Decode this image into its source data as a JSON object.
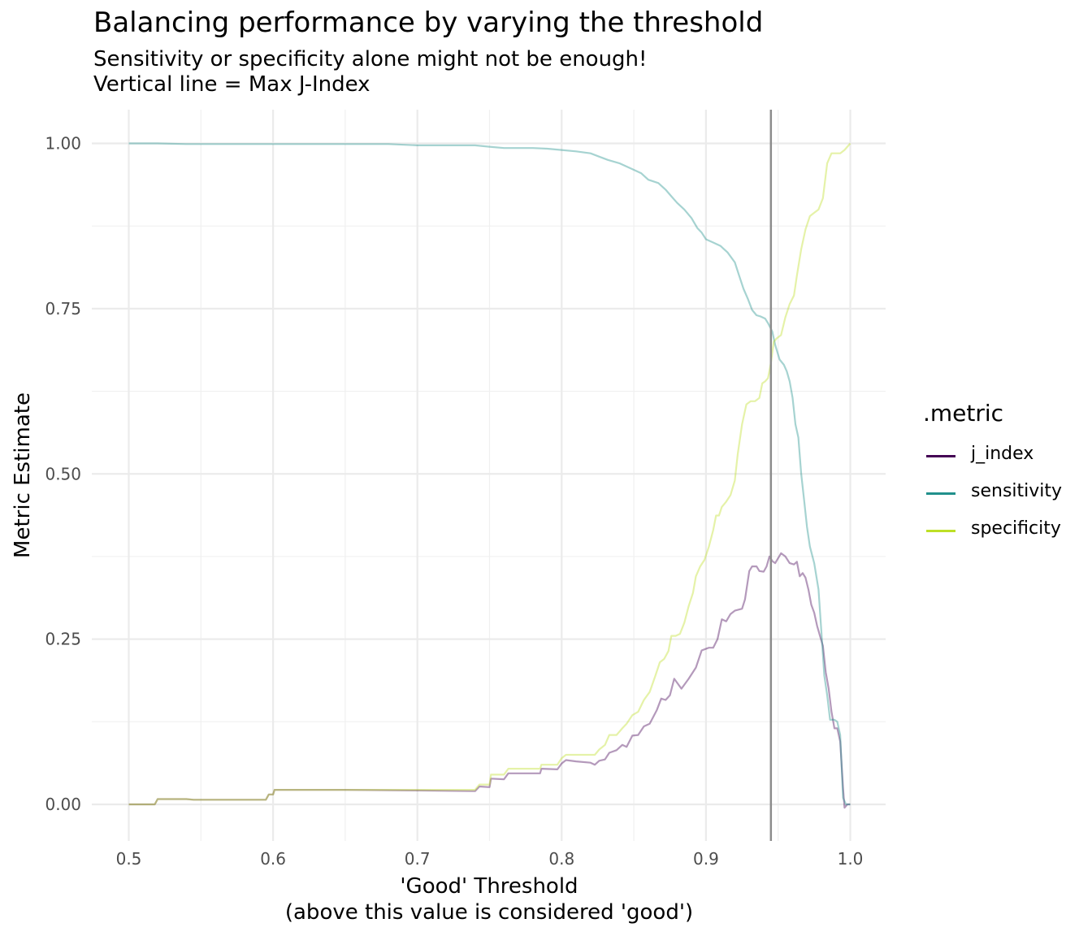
{
  "chart_data": {
    "type": "line",
    "title": "Balancing performance by varying the threshold",
    "subtitle_lines": [
      "Sensitivity or specificity alone might not be enough!",
      "Vertical line = Max J-Index"
    ],
    "xlabel_lines": [
      "'Good' Threshold",
      "(above this value is considered 'good')"
    ],
    "ylabel": "Metric Estimate",
    "xlim": [
      0.5,
      1.0
    ],
    "ylim": [
      0,
      1
    ],
    "x_ticks": [
      0.5,
      0.6,
      0.7,
      0.8,
      0.9,
      1.0
    ],
    "x_tick_labels": [
      "0.5",
      "0.6",
      "0.7",
      "0.8",
      "0.9",
      "1.0"
    ],
    "y_ticks": [
      0,
      0.25,
      0.5,
      0.75,
      1.0
    ],
    "y_tick_labels": [
      "0.00",
      "0.25",
      "0.50",
      "0.75",
      "1.00"
    ],
    "grid": true,
    "legend_title": ".metric",
    "legend_position": "right",
    "vline_x": 0.945,
    "vline_color": "#8c8c8c",
    "series": [
      {
        "name": "j_index",
        "color": "#440154",
        "points": [
          [
            0.5,
            0
          ],
          [
            0.518,
            0
          ],
          [
            0.52,
            0.008
          ],
          [
            0.54,
            0.008
          ],
          [
            0.545,
            0.007
          ],
          [
            0.59,
            0.007
          ],
          [
            0.595,
            0.007
          ],
          [
            0.597,
            0.015
          ],
          [
            0.6,
            0.015
          ],
          [
            0.601,
            0.022
          ],
          [
            0.65,
            0.022
          ],
          [
            0.7,
            0.021
          ],
          [
            0.74,
            0.02
          ],
          [
            0.743,
            0.027
          ],
          [
            0.75,
            0.026
          ],
          [
            0.751,
            0.039
          ],
          [
            0.76,
            0.038
          ],
          [
            0.763,
            0.047
          ],
          [
            0.785,
            0.047
          ],
          [
            0.786,
            0.054
          ],
          [
            0.797,
            0.053
          ],
          [
            0.8,
            0.062
          ],
          [
            0.803,
            0.067
          ],
          [
            0.81,
            0.065
          ],
          [
            0.82,
            0.063
          ],
          [
            0.823,
            0.06
          ],
          [
            0.826,
            0.066
          ],
          [
            0.83,
            0.068
          ],
          [
            0.833,
            0.078
          ],
          [
            0.838,
            0.082
          ],
          [
            0.842,
            0.09
          ],
          [
            0.845,
            0.087
          ],
          [
            0.849,
            0.104
          ],
          [
            0.853,
            0.105
          ],
          [
            0.857,
            0.118
          ],
          [
            0.861,
            0.122
          ],
          [
            0.866,
            0.143
          ],
          [
            0.869,
            0.16
          ],
          [
            0.872,
            0.158
          ],
          [
            0.875,
            0.165
          ],
          [
            0.878,
            0.19
          ],
          [
            0.883,
            0.175
          ],
          [
            0.888,
            0.19
          ],
          [
            0.893,
            0.207
          ],
          [
            0.897,
            0.233
          ],
          [
            0.902,
            0.237
          ],
          [
            0.905,
            0.237
          ],
          [
            0.908,
            0.25
          ],
          [
            0.911,
            0.28
          ],
          [
            0.914,
            0.277
          ],
          [
            0.917,
            0.288
          ],
          [
            0.92,
            0.293
          ],
          [
            0.925,
            0.296
          ],
          [
            0.927,
            0.31
          ],
          [
            0.93,
            0.353
          ],
          [
            0.932,
            0.36
          ],
          [
            0.935,
            0.36
          ],
          [
            0.937,
            0.353
          ],
          [
            0.94,
            0.352
          ],
          [
            0.942,
            0.36
          ],
          [
            0.944,
            0.375
          ],
          [
            0.946,
            0.368
          ],
          [
            0.948,
            0.365
          ],
          [
            0.952,
            0.38
          ],
          [
            0.955,
            0.375
          ],
          [
            0.958,
            0.365
          ],
          [
            0.961,
            0.363
          ],
          [
            0.963,
            0.367
          ],
          [
            0.965,
            0.345
          ],
          [
            0.967,
            0.35
          ],
          [
            0.969,
            0.343
          ],
          [
            0.971,
            0.325
          ],
          [
            0.973,
            0.302
          ],
          [
            0.975,
            0.29
          ],
          [
            0.977,
            0.27
          ],
          [
            0.979,
            0.255
          ],
          [
            0.981,
            0.24
          ],
          [
            0.983,
            0.2
          ],
          [
            0.985,
            0.175
          ],
          [
            0.987,
            0.14
          ],
          [
            0.989,
            0.115
          ],
          [
            0.991,
            0.115
          ],
          [
            0.993,
            0.095
          ],
          [
            0.995,
            0.025
          ],
          [
            0.996,
            -0.005
          ],
          [
            0.998,
            0.0
          ],
          [
            1.0,
            0.0
          ]
        ]
      },
      {
        "name": "sensitivity",
        "color": "#21908c",
        "points": [
          [
            0.5,
            1.0
          ],
          [
            0.52,
            1.0
          ],
          [
            0.54,
            0.999
          ],
          [
            0.6,
            0.999
          ],
          [
            0.68,
            0.999
          ],
          [
            0.7,
            0.997
          ],
          [
            0.74,
            0.997
          ],
          [
            0.75,
            0.995
          ],
          [
            0.76,
            0.993
          ],
          [
            0.78,
            0.993
          ],
          [
            0.79,
            0.992
          ],
          [
            0.8,
            0.99
          ],
          [
            0.81,
            0.988
          ],
          [
            0.82,
            0.985
          ],
          [
            0.826,
            0.98
          ],
          [
            0.832,
            0.975
          ],
          [
            0.84,
            0.97
          ],
          [
            0.848,
            0.962
          ],
          [
            0.855,
            0.955
          ],
          [
            0.86,
            0.945
          ],
          [
            0.867,
            0.94
          ],
          [
            0.872,
            0.93
          ],
          [
            0.876,
            0.92
          ],
          [
            0.88,
            0.91
          ],
          [
            0.885,
            0.9
          ],
          [
            0.89,
            0.887
          ],
          [
            0.894,
            0.872
          ],
          [
            0.897,
            0.865
          ],
          [
            0.9,
            0.855
          ],
          [
            0.905,
            0.85
          ],
          [
            0.91,
            0.845
          ],
          [
            0.915,
            0.835
          ],
          [
            0.92,
            0.82
          ],
          [
            0.923,
            0.8
          ],
          [
            0.926,
            0.78
          ],
          [
            0.929,
            0.765
          ],
          [
            0.932,
            0.748
          ],
          [
            0.935,
            0.74
          ],
          [
            0.938,
            0.738
          ],
          [
            0.941,
            0.735
          ],
          [
            0.943,
            0.728
          ],
          [
            0.946,
            0.715
          ],
          [
            0.948,
            0.695
          ],
          [
            0.951,
            0.673
          ],
          [
            0.954,
            0.665
          ],
          [
            0.956,
            0.655
          ],
          [
            0.958,
            0.64
          ],
          [
            0.96,
            0.615
          ],
          [
            0.962,
            0.575
          ],
          [
            0.964,
            0.555
          ],
          [
            0.966,
            0.5
          ],
          [
            0.968,
            0.46
          ],
          [
            0.97,
            0.42
          ],
          [
            0.972,
            0.39
          ],
          [
            0.975,
            0.365
          ],
          [
            0.978,
            0.325
          ],
          [
            0.98,
            0.26
          ],
          [
            0.982,
            0.195
          ],
          [
            0.984,
            0.165
          ],
          [
            0.986,
            0.128
          ],
          [
            0.989,
            0.128
          ],
          [
            0.991,
            0.125
          ],
          [
            0.993,
            0.105
          ],
          [
            0.995,
            0.01
          ],
          [
            0.997,
            0.0
          ],
          [
            1.0,
            0.0
          ]
        ]
      },
      {
        "name": "specificity",
        "color": "#bddf26",
        "points": [
          [
            0.5,
            0
          ],
          [
            0.518,
            0
          ],
          [
            0.52,
            0.008
          ],
          [
            0.54,
            0.008
          ],
          [
            0.545,
            0.007
          ],
          [
            0.59,
            0.007
          ],
          [
            0.595,
            0.007
          ],
          [
            0.597,
            0.015
          ],
          [
            0.6,
            0.015
          ],
          [
            0.601,
            0.022
          ],
          [
            0.65,
            0.022
          ],
          [
            0.7,
            0.022
          ],
          [
            0.74,
            0.022
          ],
          [
            0.743,
            0.03
          ],
          [
            0.75,
            0.03
          ],
          [
            0.751,
            0.045
          ],
          [
            0.76,
            0.045
          ],
          [
            0.763,
            0.054
          ],
          [
            0.785,
            0.054
          ],
          [
            0.786,
            0.06
          ],
          [
            0.797,
            0.06
          ],
          [
            0.8,
            0.07
          ],
          [
            0.803,
            0.075
          ],
          [
            0.82,
            0.075
          ],
          [
            0.823,
            0.075
          ],
          [
            0.826,
            0.083
          ],
          [
            0.83,
            0.09
          ],
          [
            0.833,
            0.105
          ],
          [
            0.838,
            0.105
          ],
          [
            0.842,
            0.115
          ],
          [
            0.845,
            0.122
          ],
          [
            0.849,
            0.135
          ],
          [
            0.853,
            0.14
          ],
          [
            0.857,
            0.158
          ],
          [
            0.861,
            0.17
          ],
          [
            0.865,
            0.195
          ],
          [
            0.868,
            0.215
          ],
          [
            0.871,
            0.22
          ],
          [
            0.874,
            0.232
          ],
          [
            0.876,
            0.255
          ],
          [
            0.879,
            0.255
          ],
          [
            0.882,
            0.258
          ],
          [
            0.885,
            0.275
          ],
          [
            0.888,
            0.3
          ],
          [
            0.891,
            0.32
          ],
          [
            0.893,
            0.345
          ],
          [
            0.896,
            0.36
          ],
          [
            0.899,
            0.37
          ],
          [
            0.902,
            0.39
          ],
          [
            0.905,
            0.415
          ],
          [
            0.907,
            0.437
          ],
          [
            0.909,
            0.437
          ],
          [
            0.911,
            0.45
          ],
          [
            0.914,
            0.458
          ],
          [
            0.917,
            0.468
          ],
          [
            0.92,
            0.49
          ],
          [
            0.922,
            0.53
          ],
          [
            0.925,
            0.575
          ],
          [
            0.928,
            0.605
          ],
          [
            0.931,
            0.61
          ],
          [
            0.934,
            0.61
          ],
          [
            0.937,
            0.615
          ],
          [
            0.939,
            0.637
          ],
          [
            0.941,
            0.64
          ],
          [
            0.943,
            0.645
          ],
          [
            0.945,
            0.668
          ],
          [
            0.947,
            0.7
          ],
          [
            0.949,
            0.705
          ],
          [
            0.952,
            0.71
          ],
          [
            0.955,
            0.737
          ],
          [
            0.958,
            0.757
          ],
          [
            0.961,
            0.77
          ],
          [
            0.963,
            0.8
          ],
          [
            0.966,
            0.84
          ],
          [
            0.969,
            0.87
          ],
          [
            0.972,
            0.89
          ],
          [
            0.975,
            0.895
          ],
          [
            0.978,
            0.9
          ],
          [
            0.981,
            0.917
          ],
          [
            0.984,
            0.97
          ],
          [
            0.987,
            0.985
          ],
          [
            0.99,
            0.985
          ],
          [
            0.993,
            0.985
          ],
          [
            0.996,
            0.99
          ],
          [
            1.0,
            1.0
          ]
        ]
      }
    ]
  }
}
